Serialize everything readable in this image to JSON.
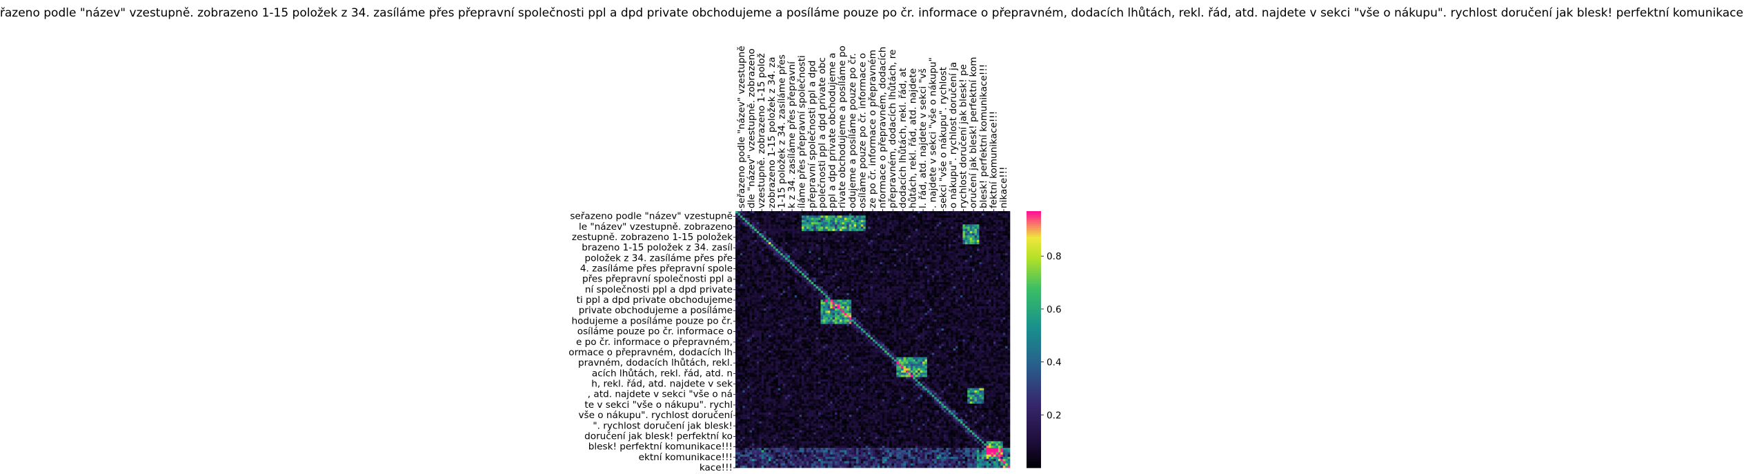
{
  "chart_data": {
    "type": "heatmap",
    "title": "seřazeno podle \"název\" vzestupně. zobrazeno 1-15 položek z 34. zasíláme přes přepravní společnosti ppl a dpd private obchodujeme a posíláme pouze po čr. informace o přepravném, dodacích lhůtách, rekl. řád, atd. najdete v sekci \"vše o nákupu\". rychlost doručení jak blesk! perfektní komunikace!!!",
    "xlabel": "",
    "ylabel": "",
    "y_tick_labels": [
      "seřazeno podle \"název\" vzestupně",
      "le \"název\" vzestupně. zobrazeno",
      "zestupně. zobrazeno 1-15 položek",
      "brazeno 1-15 položek z 34. zasíl",
      " položek z 34. zasíláme přes pře",
      "4. zasíláme přes přepravní spole",
      "přes přepravní společnosti ppl a",
      "ní společnosti ppl a dpd private",
      "ti ppl a dpd private obchodujeme",
      " private obchodujeme a posíláme ",
      "hodujeme a posíláme pouze po čr.",
      " osíláme pouze po čr. informace o",
      "e po čr. informace o přepravném,",
      "ormace o přepravném, dodacích lh",
      " pravném, dodacích lhůtách, rekl.",
      "acích lhůtách, rekl. řád, atd. n",
      "h, rekl. řád, atd. najdete v sek",
      ", atd. najdete v sekci \"vše o ná",
      "te v sekci \"vše o nákupu\". rychl",
      "vše o nákupu\". rychlost doručení",
      "\". rychlost doručení jak blesk!",
      " doručení jak blesk! perfektní ko",
      " blesk! perfektní komunikace!!!",
      "ektní komunikace!!!",
      "kace!!!"
    ],
    "x_tick_labels": [
      "seřazeno podle \"název\" vzestupně",
      "dle \"název\" vzestupně. zobrazeno",
      " vzestupně. zobrazeno 1-15 polož",
      " zobrazeno 1-15 položek z 34. za",
      "1-15 položek z 34. zasíláme přes",
      "k z 34. zasíláme přes přepravní",
      "íláme přes přepravní společnosti",
      "přepravní společnosti ppl a dpd",
      "polečnosti ppl a dpd private obc",
      "ppl a dpd private obchodujeme a",
      "rivate obchodujeme a posíláme po",
      "odujeme a posíláme pouze po čr.",
      "osíláme pouze po čr. informace o",
      "ze po čr. informace o přepravném",
      "nformace o přepravném, dodacích",
      "přepravném, dodacích lhůtách, re",
      " dodacích lhůtách, rekl. řád, at",
      "hůtách, rekl. řád, atd. najdete",
      "l. řád, atd. najdete v sekci \"vš",
      ". najdete v sekci \"vše o nákupu\"",
      " sekci \"vše o nákupu\". rychlost",
      "o nákupu\". rychlost doručení ja",
      " rychlost doručení jak blesk! pe",
      "oručení jak blesk! perfektní kom",
      " blesk! perfektní komunikace!!!",
      "fektní komunikace!!!",
      "nikace!!!"
    ],
    "colorbar": {
      "colormap": "dark-to-magenta (black, indigo, teal, green, yellow-green, pink)",
      "ticks": [
        0.2,
        0.4,
        0.6,
        0.8
      ],
      "tick_labels": [
        "0.2",
        "0.4",
        "0.6",
        "0.8"
      ],
      "range": [
        0.0,
        0.97
      ]
    },
    "grid": false,
    "legend": "none",
    "matrix_shape": [
      116,
      116
    ],
    "matrix_note_values": "attention-style similarity; mostly near 0 with bright diagonal streaks and a hot block near bottom-right"
  }
}
